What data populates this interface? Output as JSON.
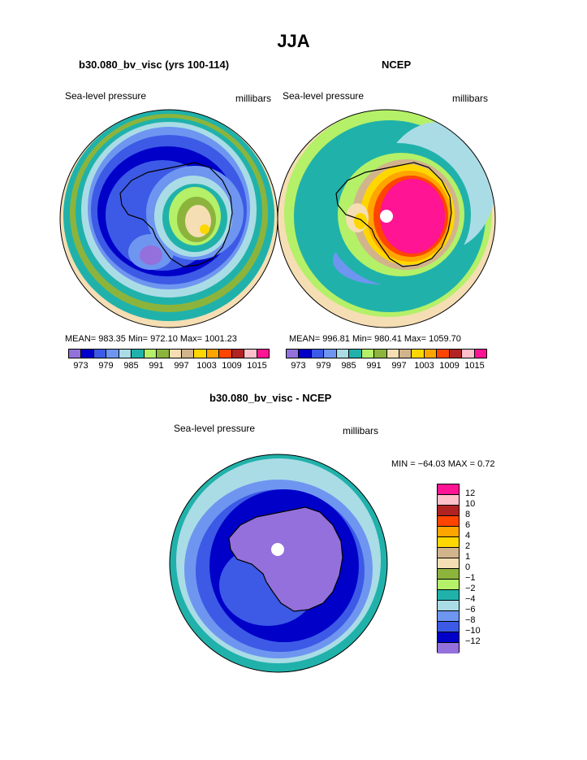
{
  "title": "JJA",
  "panels": [
    {
      "title": "b30.080_bv_visc (yrs 100-114)",
      "left_label": "Sea-level pressure",
      "right_label": "millibars",
      "stats": "MEAN= 983.35   Min= 972.10   Max= 1001.23"
    },
    {
      "title": "NCEP",
      "left_label": "Sea-level pressure",
      "right_label": "millibars",
      "stats": "MEAN= 996.81   Min= 980.41   Max= 1059.70"
    },
    {
      "title": "b30.080_bv_visc - NCEP",
      "left_label": "Sea-level pressure",
      "right_label": "millibars",
      "stats": "MIN = −64.03  MAX =    0.72"
    }
  ],
  "colorbar_top": {
    "tick_labels": [
      "973",
      "979",
      "985",
      "991",
      "997",
      "1003",
      "1009",
      "1015"
    ],
    "colors": [
      "#9370DB",
      "#0000C8",
      "#3C5AE6",
      "#6E96F0",
      "#AADCE6",
      "#20B2AA",
      "#B4F068",
      "#8CB43C",
      "#F5DEB3",
      "#D2B48C",
      "#FFD700",
      "#FFA500",
      "#FF4500",
      "#B22222",
      "#FFC0CB",
      "#FF1493"
    ]
  },
  "colorbar_diff": {
    "labels": [
      "12",
      "10",
      "8",
      "6",
      "4",
      "2",
      "1",
      "0",
      "−1",
      "−2",
      "−4",
      "−6",
      "−8",
      "−10",
      "−12"
    ],
    "colors": [
      "#FF1493",
      "#FFC0CB",
      "#B22222",
      "#FF4500",
      "#FFA500",
      "#FFD700",
      "#D2B48C",
      "#F5DEB3",
      "#8CB43C",
      "#B4F068",
      "#20B2AA",
      "#AADCE6",
      "#6E96F0",
      "#3C5AE6",
      "#0000C8",
      "#9370DB"
    ]
  }
}
